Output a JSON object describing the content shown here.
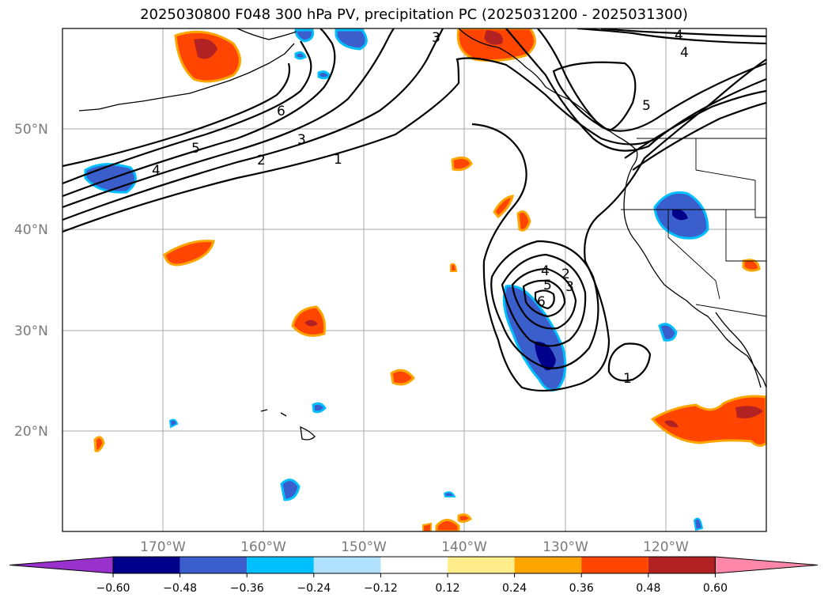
{
  "title": "2025030800 F048 300 hPa PV, precipitation PC (2025031200 - 2025031300)",
  "lat_labels": [
    {
      "text": "50°N",
      "lat": 50
    },
    {
      "text": "40°N",
      "lat": 40
    },
    {
      "text": "30°N",
      "lat": 30
    },
    {
      "text": "20°N",
      "lat": 20
    }
  ],
  "lon_labels": [
    {
      "text": "170°W",
      "lon": -170
    },
    {
      "text": "160°W",
      "lon": -160
    },
    {
      "text": "150°W",
      "lon": -150
    },
    {
      "text": "140°W",
      "lon": -140
    },
    {
      "text": "130°W",
      "lon": -130
    },
    {
      "text": "120°W",
      "lon": -120
    }
  ],
  "map_extent": {
    "lon_min": -180,
    "lon_max": -110,
    "lat_min": 10,
    "lat_max": 60
  },
  "pv_contour_labels": [
    "1",
    "2",
    "3",
    "4",
    "5",
    "6",
    "3",
    "4",
    "5",
    "4",
    "2",
    "3",
    "4",
    "5",
    "6",
    "1"
  ],
  "colorbar": {
    "ticks": [
      "−0.60",
      "−0.48",
      "−0.36",
      "−0.24",
      "−0.12",
      "0.12",
      "0.24",
      "0.36",
      "0.48",
      "0.60"
    ],
    "colors": [
      "#9932cc",
      "#00008b",
      "#3a5fcd",
      "#00bfff",
      "#b0e2ff",
      "#ffffff",
      "#ffec8b",
      "#ffa500",
      "#ff4500",
      "#b22222",
      "#ff88aa"
    ]
  },
  "precip_colors": {
    "neg_light": "#00bfff",
    "neg_mid": "#3a5fcd",
    "neg_dark": "#00008b",
    "pos_light": "#ffa500",
    "pos_mid": "#ff4500",
    "pos_dark": "#b22222"
  }
}
